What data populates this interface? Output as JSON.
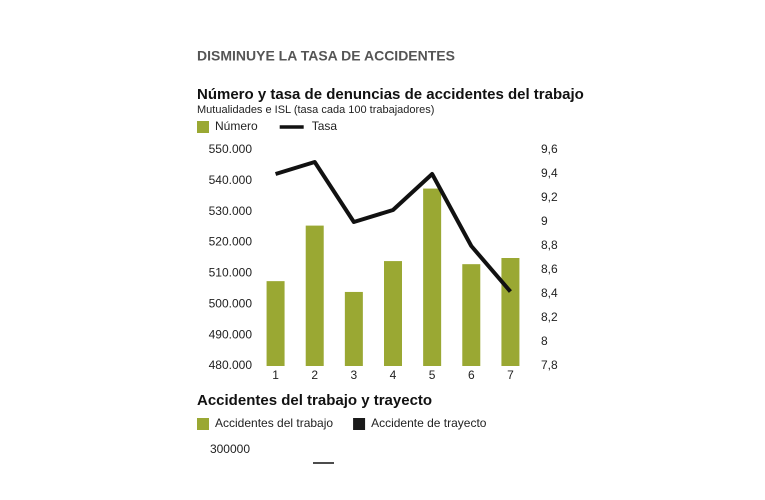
{
  "header": {
    "title": "DISMINUYE LA TASA DE ACCIDENTES"
  },
  "chart_data": [
    {
      "type": "bar",
      "title": "Número y tasa de denuncias de accidentes del trabajo",
      "subtitle": "Mutualidades e ISL (tasa cada 100 trabajadores)",
      "categories": [
        "1",
        "2",
        "3",
        "4",
        "5",
        "6",
        "7"
      ],
      "series": [
        {
          "name": "Número",
          "color": "#9aa833",
          "values": [
            507500,
            525500,
            504000,
            514000,
            537500,
            513000,
            515000
          ]
        },
        {
          "name": "Tasa",
          "color": "#111111",
          "axis": "y2",
          "values": [
            9.4,
            9.5,
            9.0,
            9.1,
            9.4,
            8.8,
            8.42
          ]
        }
      ],
      "ylim": [
        480000,
        550000
      ],
      "yticks": [
        {
          "value": 480000,
          "label": "480.000"
        },
        {
          "value": 490000,
          "label": "490.000"
        },
        {
          "value": 500000,
          "label": "500.000"
        },
        {
          "value": 510000,
          "label": "510.000"
        },
        {
          "value": 520000,
          "label": "520.000"
        },
        {
          "value": 530000,
          "label": "530.000"
        },
        {
          "value": 540000,
          "label": "540.000"
        },
        {
          "value": 550000,
          "label": "550.000"
        }
      ],
      "y2lim": [
        7.8,
        9.6
      ],
      "y2ticks": [
        {
          "value": 7.8,
          "label": "7,8"
        },
        8,
        {
          "value": 8.2,
          "label": "8,2"
        },
        {
          "value": 8.4,
          "label": "8,4"
        },
        {
          "value": 8.6,
          "label": "8,6"
        },
        {
          "value": 8.8,
          "label": "8,8"
        },
        9,
        {
          "value": 9.2,
          "label": "9,2"
        },
        {
          "value": 9.4,
          "label": "9,4"
        },
        {
          "value": 9.6,
          "label": "9,6"
        }
      ],
      "grid": false
    },
    {
      "type": "bar",
      "title": "Accidentes del trabajo y trayecto",
      "series": [
        {
          "name": "Accidentes del trabajo",
          "color": "#9aa833",
          "values": []
        },
        {
          "name": "Accidente de trayecto",
          "color": "#1a1a1a",
          "values": []
        }
      ],
      "yticks": [
        300000
      ]
    }
  ]
}
